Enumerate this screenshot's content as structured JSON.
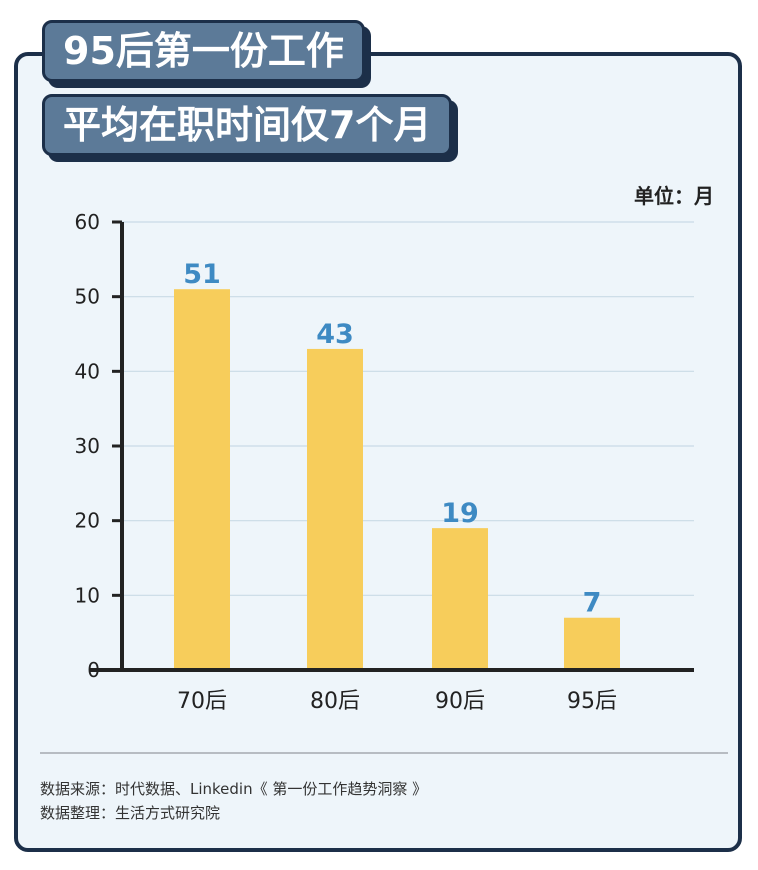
{
  "header": {
    "title_line1": "95后第一份工作",
    "title_line2": "平均在职时间仅7个月"
  },
  "unit_label": "单位：月",
  "chart_data": {
    "type": "bar",
    "categories": [
      "70后",
      "80后",
      "90后",
      "95后"
    ],
    "values": [
      51,
      43,
      19,
      7
    ],
    "ylim": [
      0,
      60
    ],
    "yticks": [
      0,
      10,
      20,
      30,
      40,
      50,
      60
    ],
    "grid": true,
    "bar_color": "#f7cd5b",
    "value_label_color": "#3e8ac3",
    "axis_color": "#222222"
  },
  "footer": {
    "source": "数据来源：时代数据、Linkedin《 第一份工作趋势洞察 》",
    "compiled_by": "数据整理：生活方式研究院"
  },
  "colors": {
    "panel_bg": "#eef5fa",
    "border": "#1c2f49",
    "title_bg": "#5c7a98",
    "title_text": "#ffffff"
  }
}
